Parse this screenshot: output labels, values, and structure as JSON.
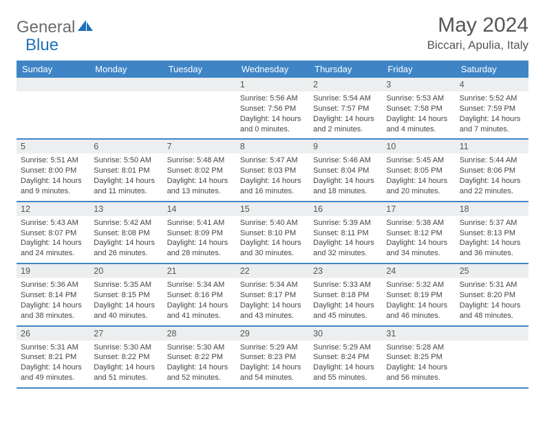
{
  "brand": {
    "part1": "General",
    "part2": "Blue",
    "color_blue": "#1f71b8",
    "color_gray": "#6b6b6b"
  },
  "title": "May 2024",
  "location": "Biccari, Apulia, Italy",
  "header_bg": "#3f85c6",
  "daynum_bg": "#eceeef",
  "border_color": "#3f85c6",
  "day_names": [
    "Sunday",
    "Monday",
    "Tuesday",
    "Wednesday",
    "Thursday",
    "Friday",
    "Saturday"
  ],
  "weeks": [
    [
      null,
      null,
      null,
      {
        "n": "1",
        "sr": "5:56 AM",
        "ss": "7:56 PM",
        "dl1": "Daylight: 14 hours",
        "dl2": "and 0 minutes."
      },
      {
        "n": "2",
        "sr": "5:54 AM",
        "ss": "7:57 PM",
        "dl1": "Daylight: 14 hours",
        "dl2": "and 2 minutes."
      },
      {
        "n": "3",
        "sr": "5:53 AM",
        "ss": "7:58 PM",
        "dl1": "Daylight: 14 hours",
        "dl2": "and 4 minutes."
      },
      {
        "n": "4",
        "sr": "5:52 AM",
        "ss": "7:59 PM",
        "dl1": "Daylight: 14 hours",
        "dl2": "and 7 minutes."
      }
    ],
    [
      {
        "n": "5",
        "sr": "5:51 AM",
        "ss": "8:00 PM",
        "dl1": "Daylight: 14 hours",
        "dl2": "and 9 minutes."
      },
      {
        "n": "6",
        "sr": "5:50 AM",
        "ss": "8:01 PM",
        "dl1": "Daylight: 14 hours",
        "dl2": "and 11 minutes."
      },
      {
        "n": "7",
        "sr": "5:48 AM",
        "ss": "8:02 PM",
        "dl1": "Daylight: 14 hours",
        "dl2": "and 13 minutes."
      },
      {
        "n": "8",
        "sr": "5:47 AM",
        "ss": "8:03 PM",
        "dl1": "Daylight: 14 hours",
        "dl2": "and 16 minutes."
      },
      {
        "n": "9",
        "sr": "5:46 AM",
        "ss": "8:04 PM",
        "dl1": "Daylight: 14 hours",
        "dl2": "and 18 minutes."
      },
      {
        "n": "10",
        "sr": "5:45 AM",
        "ss": "8:05 PM",
        "dl1": "Daylight: 14 hours",
        "dl2": "and 20 minutes."
      },
      {
        "n": "11",
        "sr": "5:44 AM",
        "ss": "8:06 PM",
        "dl1": "Daylight: 14 hours",
        "dl2": "and 22 minutes."
      }
    ],
    [
      {
        "n": "12",
        "sr": "5:43 AM",
        "ss": "8:07 PM",
        "dl1": "Daylight: 14 hours",
        "dl2": "and 24 minutes."
      },
      {
        "n": "13",
        "sr": "5:42 AM",
        "ss": "8:08 PM",
        "dl1": "Daylight: 14 hours",
        "dl2": "and 26 minutes."
      },
      {
        "n": "14",
        "sr": "5:41 AM",
        "ss": "8:09 PM",
        "dl1": "Daylight: 14 hours",
        "dl2": "and 28 minutes."
      },
      {
        "n": "15",
        "sr": "5:40 AM",
        "ss": "8:10 PM",
        "dl1": "Daylight: 14 hours",
        "dl2": "and 30 minutes."
      },
      {
        "n": "16",
        "sr": "5:39 AM",
        "ss": "8:11 PM",
        "dl1": "Daylight: 14 hours",
        "dl2": "and 32 minutes."
      },
      {
        "n": "17",
        "sr": "5:38 AM",
        "ss": "8:12 PM",
        "dl1": "Daylight: 14 hours",
        "dl2": "and 34 minutes."
      },
      {
        "n": "18",
        "sr": "5:37 AM",
        "ss": "8:13 PM",
        "dl1": "Daylight: 14 hours",
        "dl2": "and 36 minutes."
      }
    ],
    [
      {
        "n": "19",
        "sr": "5:36 AM",
        "ss": "8:14 PM",
        "dl1": "Daylight: 14 hours",
        "dl2": "and 38 minutes."
      },
      {
        "n": "20",
        "sr": "5:35 AM",
        "ss": "8:15 PM",
        "dl1": "Daylight: 14 hours",
        "dl2": "and 40 minutes."
      },
      {
        "n": "21",
        "sr": "5:34 AM",
        "ss": "8:16 PM",
        "dl1": "Daylight: 14 hours",
        "dl2": "and 41 minutes."
      },
      {
        "n": "22",
        "sr": "5:34 AM",
        "ss": "8:17 PM",
        "dl1": "Daylight: 14 hours",
        "dl2": "and 43 minutes."
      },
      {
        "n": "23",
        "sr": "5:33 AM",
        "ss": "8:18 PM",
        "dl1": "Daylight: 14 hours",
        "dl2": "and 45 minutes."
      },
      {
        "n": "24",
        "sr": "5:32 AM",
        "ss": "8:19 PM",
        "dl1": "Daylight: 14 hours",
        "dl2": "and 46 minutes."
      },
      {
        "n": "25",
        "sr": "5:31 AM",
        "ss": "8:20 PM",
        "dl1": "Daylight: 14 hours",
        "dl2": "and 48 minutes."
      }
    ],
    [
      {
        "n": "26",
        "sr": "5:31 AM",
        "ss": "8:21 PM",
        "dl1": "Daylight: 14 hours",
        "dl2": "and 49 minutes."
      },
      {
        "n": "27",
        "sr": "5:30 AM",
        "ss": "8:22 PM",
        "dl1": "Daylight: 14 hours",
        "dl2": "and 51 minutes."
      },
      {
        "n": "28",
        "sr": "5:30 AM",
        "ss": "8:22 PM",
        "dl1": "Daylight: 14 hours",
        "dl2": "and 52 minutes."
      },
      {
        "n": "29",
        "sr": "5:29 AM",
        "ss": "8:23 PM",
        "dl1": "Daylight: 14 hours",
        "dl2": "and 54 minutes."
      },
      {
        "n": "30",
        "sr": "5:29 AM",
        "ss": "8:24 PM",
        "dl1": "Daylight: 14 hours",
        "dl2": "and 55 minutes."
      },
      {
        "n": "31",
        "sr": "5:28 AM",
        "ss": "8:25 PM",
        "dl1": "Daylight: 14 hours",
        "dl2": "and 56 minutes."
      },
      null
    ]
  ]
}
